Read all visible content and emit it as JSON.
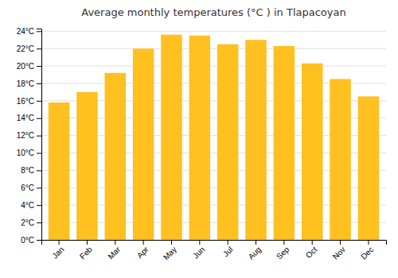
{
  "chart_data": {
    "type": "bar",
    "title": "Average monthly temperatures (°C ) in Tlapacoyan",
    "categories": [
      "Jan",
      "Feb",
      "Mar",
      "Apr",
      "May",
      "Jun",
      "Jul",
      "Aug",
      "Sep",
      "Oct",
      "Nov",
      "Dec"
    ],
    "values": [
      15.8,
      17.0,
      19.2,
      22.0,
      23.6,
      23.5,
      22.5,
      23.0,
      22.3,
      20.3,
      18.5,
      16.5
    ],
    "color": "#FFC020",
    "ylim": [
      0,
      24.3
    ],
    "yticks": [
      {
        "value": 0,
        "label": "0°C"
      },
      {
        "value": 2,
        "label": "2°C"
      },
      {
        "value": 4,
        "label": "4°C"
      },
      {
        "value": 6,
        "label": "6°C"
      },
      {
        "value": 8,
        "label": "8°C"
      },
      {
        "value": 10,
        "label": "10°C"
      },
      {
        "value": 12,
        "label": "12°C"
      },
      {
        "value": 14,
        "label": "14°C"
      },
      {
        "value": 16,
        "label": "16°C"
      },
      {
        "value": 18,
        "label": "18°C"
      },
      {
        "value": 20,
        "label": "20°C"
      },
      {
        "value": 22,
        "label": "22°C"
      },
      {
        "value": 24,
        "label": "24°C"
      }
    ],
    "grid": true
  }
}
